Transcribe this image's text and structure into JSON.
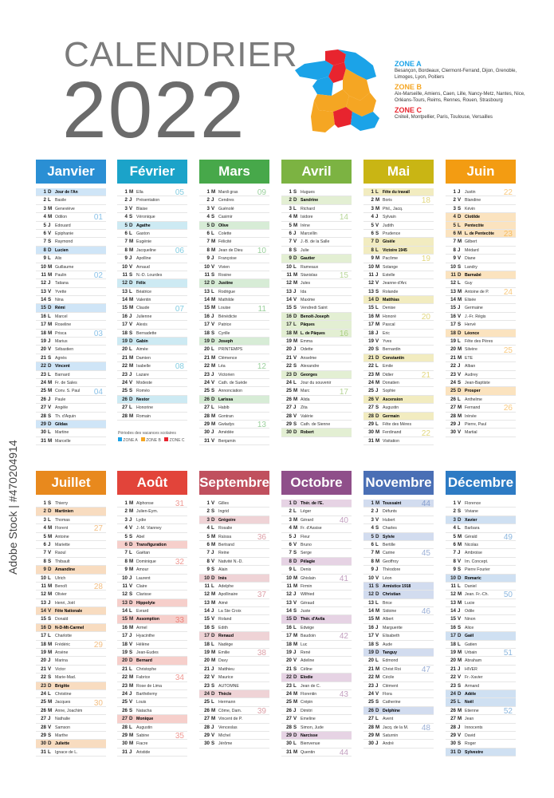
{
  "header": {
    "title": "CALENDRIER",
    "year": "2022"
  },
  "zones": [
    {
      "name": "ZONE A",
      "color": "#f5a623",
      "desc": "Besançon, Bordeaux, Clermont-Ferrand, Dijon, Grenoble, Limoges, Lyon, Poitiers"
    },
    {
      "name": "ZONE B",
      "color": "#f5a623",
      "desc": "Aix-Marseille, Amiens, Caen, Lille, Nancy-Metz, Nantes, Nice, Orléans-Tours, Reims, Rennes, Rouen, Strasbourg"
    },
    {
      "name": "ZONE C",
      "color": "#e8242e",
      "desc": "Créteil, Montpellier, Paris, Toulouse, Versailles"
    }
  ],
  "legend": {
    "title": "Périodes des vacances scolaires",
    "a": "ZONE A",
    "b": "ZONE B",
    "c": "ZONE C"
  },
  "watermark": {
    "side": "Adobe Stock | #470204914"
  },
  "months": [
    {
      "name": "Janvier",
      "color": "#2a8fd4",
      "tint": "#cfe5f7",
      "start": 6,
      "count": 31,
      "hol": {
        "1": "Jour de l'An"
      },
      "saints": [
        "Jour de l'An",
        "Basile",
        "Geneviève",
        "Odilon",
        "Edouard",
        "Epiphanie",
        "Raymond",
        "Lucien",
        "Alix",
        "Guillaume",
        "Paulin",
        "Tatiana",
        "Yvette",
        "Nina",
        "Rémi",
        "Marcel",
        "Roseline",
        "Prisca",
        "Marius",
        "Sébastien",
        "Agnès",
        "Vincent",
        "Barnard",
        "Fr. de Sales",
        "Conv. S. Paul",
        "Paule",
        "Angèle",
        "Th. d'Aquin",
        "Gildas",
        "Martine",
        "Marcelle"
      ],
      "weeks": [
        [
          "01",
          4
        ],
        [
          "02",
          11
        ],
        [
          "03",
          18
        ],
        [
          "04",
          25
        ]
      ]
    },
    {
      "name": "Février",
      "color": "#1ba3c9",
      "tint": "#cdeaf3",
      "start": 2,
      "count": 28,
      "hol": {},
      "saints": [
        "Ella",
        "Présentation",
        "Blaise",
        "Véronique",
        "Agathe",
        "Gaston",
        "Eugénie",
        "Jacqueline",
        "Apolline",
        "Arnaud",
        "N.-D. Lourdes",
        "Félix",
        "Béatrice",
        "Valentin",
        "Claude",
        "Julienne",
        "Alexis",
        "Bernadette",
        "Gabin",
        "Aimée",
        "Damien",
        "Isabelle",
        "Lazare",
        "Modeste",
        "Roméo",
        "Nestor",
        "Honorine",
        "Romain"
      ],
      "weeks": [
        [
          "05",
          1
        ],
        [
          "06",
          8
        ],
        [
          "07",
          15
        ],
        [
          "08",
          22
        ]
      ]
    },
    {
      "name": "Mars",
      "color": "#47a84a",
      "tint": "#d7ecd6",
      "start": 2,
      "count": 31,
      "hol": {},
      "saints": [
        "Mardi gras",
        "Cendres",
        "Guénolé",
        "Casimir",
        "Olive",
        "Colette",
        "Félicité",
        "Jean de Dieu",
        "Françoise",
        "Vivien",
        "Rosine",
        "Justine",
        "Rodrigue",
        "Mathilde",
        "Louise",
        "Bénédicte",
        "Patrice",
        "Cyrille",
        "Joseph",
        "PRINTEMPS",
        "Clémence",
        "Léa",
        "Victorien",
        "Cath. de Suède",
        "Annonciation",
        "Larissa",
        "Habib",
        "Gontran",
        "Gwladys",
        "Amédée",
        "Benjamin"
      ],
      "weeks": [
        [
          "09",
          1
        ],
        [
          "10",
          8
        ],
        [
          "11",
          15
        ],
        [
          "12",
          22
        ],
        [
          "13",
          29
        ]
      ]
    },
    {
      "name": "Avril",
      "color": "#7cb342",
      "tint": "#e3efd3",
      "start": 5,
      "count": 30,
      "hol": {
        "17": "Pâques",
        "18": "L. de Pâques"
      },
      "saints": [
        "Hugues",
        "Sandrine",
        "Richard",
        "Isidore",
        "Irène",
        "Marcellin",
        "J.-B. de la Salle",
        "Julie",
        "Gautier",
        "Rameaux",
        "Stanislas",
        "Jules",
        "Ida",
        "Maxime",
        "Vendredi Saint",
        "Benoît-Joseph",
        "Pâques",
        "L. de Pâques",
        "Emma",
        "Odette",
        "Anselme",
        "Alexandre",
        "Georges",
        "Jour du souvenir",
        "Marc",
        "Alida",
        "Zita",
        "Valérie",
        "Cath. de Sienne",
        "Robert"
      ],
      "weeks": [
        [
          "14",
          4
        ],
        [
          "15",
          11
        ],
        [
          "16",
          18
        ],
        [
          "17",
          25
        ]
      ]
    },
    {
      "name": "Mai",
      "color": "#c9b514",
      "tint": "#f2ecc0",
      "start": 0,
      "count": 31,
      "hol": {
        "1": "Fête du travail",
        "8": "Victoire 1945",
        "26": "Ascension"
      },
      "saints": [
        "Fête du travail",
        "Boris",
        "Phil., Jacq.",
        "Sylvain",
        "Judith",
        "Prudence",
        "Gisèle",
        "Victoire 1945",
        "Pacôme",
        "Solange",
        "Estelle",
        "Jeanne-d'Arc",
        "Rolande",
        "Matthias",
        "Denise",
        "Honoré",
        "Pascal",
        "Eric",
        "Yves",
        "Bernardin",
        "Constantin",
        "Emile",
        "Didier",
        "Donatien",
        "Sophie",
        "Ascension",
        "Augustin",
        "Germain",
        "Fête des Mères",
        "Ferdinand",
        "Visitation"
      ],
      "weeks": [
        [
          "18",
          2
        ],
        [
          "19",
          9
        ],
        [
          "20",
          16
        ],
        [
          "21",
          23
        ],
        [
          "22",
          30
        ]
      ]
    },
    {
      "name": "Juin",
      "color": "#f39c12",
      "tint": "#fbe3bf",
      "start": 3,
      "count": 30,
      "hol": {
        "5": "Pentecôte",
        "6": "L. de Pentecôte"
      },
      "saints": [
        "Justin",
        "Blandine",
        "Kévin",
        "Clotilde",
        "Pentecôte",
        "L. de Pentecôte",
        "Gilbert",
        "Médard",
        "Diane",
        "Landry",
        "Barnabé",
        "Guy",
        "Antoine de P.",
        "Elisée",
        "Germaine",
        "J.-Fr. Régis",
        "Hervé",
        "Léonce",
        "Fête des Pères",
        "Silvère",
        "ETE",
        "Alban",
        "Audrey",
        "Jean-Baptiste",
        "Prosper",
        "Anthelme",
        "Fernand",
        "Irénée",
        "Pierre, Paul",
        "Martial"
      ],
      "weeks": [
        [
          "22",
          1
        ],
        [
          "23",
          6
        ],
        [
          "24",
          13
        ],
        [
          "25",
          20
        ],
        [
          "26",
          27
        ]
      ]
    },
    {
      "name": "Juillet",
      "color": "#e8891d",
      "tint": "#f8dcc0",
      "start": 5,
      "count": 31,
      "hol": {
        "14": "Fête Nationale"
      },
      "saints": [
        "Thierry",
        "Martinien",
        "Thomas",
        "Florent",
        "Antoine",
        "Mariette",
        "Raoul",
        "Thibault",
        "Amandine",
        "Ulrich",
        "Benoît",
        "Olivier",
        "Henri, Joël",
        "Fête Nationale",
        "Donald",
        "N-D-Mt-Carmel",
        "Charlotte",
        "Frédéric",
        "Arsène",
        "Marina",
        "Victor",
        "Marie-Mad.",
        "Brigitte",
        "Christine",
        "Jacques",
        "Anne, Joachim",
        "Nathalie",
        "Samson",
        "Marthe",
        "Juliette",
        "Ignace de L."
      ],
      "weeks": [
        [
          "27",
          4
        ],
        [
          "28",
          11
        ],
        [
          "29",
          18
        ],
        [
          "30",
          25
        ]
      ]
    },
    {
      "name": "Août",
      "color": "#e2443a",
      "tint": "#f6cfcb",
      "start": 1,
      "count": 31,
      "hol": {
        "15": "Assomption"
      },
      "saints": [
        "Alphonse",
        "Julien-Eym.",
        "Lydie",
        "J.-M. Vianney",
        "Abel",
        "Transfiguration",
        "Gaétan",
        "Dominique",
        "Amour",
        "Laurent",
        "Claire",
        "Clarisse",
        "Hippolyte",
        "Evrard",
        "Assomption",
        "Armel",
        "Hyacinthe",
        "Hélène",
        "Jean-Eudes",
        "Bernard",
        "Christophe",
        "Fabrice",
        "Rose de Lima",
        "Barthélemy",
        "Louis",
        "Natacha",
        "Monique",
        "Augustin",
        "Sabine",
        "Fiacre",
        "Aristide"
      ],
      "weeks": [
        [
          "31",
          1
        ],
        [
          "32",
          8
        ],
        [
          "33",
          15
        ],
        [
          "34",
          22
        ],
        [
          "35",
          29
        ]
      ]
    },
    {
      "name": "Septembre",
      "color": "#c0505e",
      "tint": "#efd3d6",
      "start": 4,
      "count": 30,
      "hol": {},
      "saints": [
        "Gilles",
        "Ingrid",
        "Grégoire",
        "Rosalie",
        "Raïssa",
        "Bertrand",
        "Reine",
        "Nativité N.-D.",
        "Alain",
        "Inès",
        "Adelphe",
        "Apollinaire",
        "Aimé",
        "La Ste Croix",
        "Roland",
        "Edith",
        "Renaud",
        "Nadège",
        "Emilie",
        "Davy",
        "Matthieu",
        "Maurice",
        "AUTOMNE",
        "Thècle",
        "Hermann",
        "Côme, Dam.",
        "Vincent de P.",
        "Venceslas",
        "Michel",
        "Jérôme"
      ],
      "weeks": [
        [
          "36",
          5
        ],
        [
          "37",
          12
        ],
        [
          "38",
          19
        ],
        [
          "39",
          26
        ]
      ]
    },
    {
      "name": "Octobre",
      "color": "#8f4f8a",
      "tint": "#e6d3e4",
      "start": 6,
      "count": 31,
      "hol": {},
      "saints": [
        "Thér. de l'E.",
        "Léger",
        "Gérard",
        "Fr. d'Assise",
        "Fleur",
        "Bruno",
        "Serge",
        "Pélagie",
        "Denis",
        "Ghislain",
        "Firmin",
        "Wilfried",
        "Géraud",
        "Juste",
        "Thér. d'Avila",
        "Edwige",
        "Baudoin",
        "Luc",
        "René",
        "Adeline",
        "Céline",
        "Elodie",
        "Jean de C.",
        "Florentin",
        "Crépin",
        "Dimitri",
        "Emeline",
        "Simon, Jude",
        "Narcisse",
        "Bienvenue",
        "Quentin"
      ],
      "weeks": [
        [
          "40",
          3
        ],
        [
          "41",
          10
        ],
        [
          "42",
          17
        ],
        [
          "43",
          24
        ],
        [
          "44",
          31
        ]
      ]
    },
    {
      "name": "Novembre",
      "color": "#4a6fb5",
      "tint": "#d2dcef",
      "start": 2,
      "count": 30,
      "hol": {
        "1": "Toussaint",
        "11": "Armistice 1918"
      },
      "saints": [
        "Toussaint",
        "Défunts",
        "Hubert",
        "Charles",
        "Sylvie",
        "Bertille",
        "Carine",
        "Geoffroy",
        "Théodore",
        "Léon",
        "Armistice 1918",
        "Christian",
        "Brice",
        "Sidoine",
        "Albert",
        "Marguerite",
        "Elisabeth",
        "Aude",
        "Tanguy",
        "Edmond",
        "Christ Roi",
        "Cécile",
        "Clément",
        "Flora",
        "Catherine",
        "Delphine",
        "Avent",
        "Jacq. de la M.",
        "Saturnin",
        "André"
      ],
      "weeks": [
        [
          "44",
          1
        ],
        [
          "45",
          7
        ],
        [
          "46",
          14
        ],
        [
          "47",
          21
        ],
        [
          "48",
          28
        ]
      ]
    },
    {
      "name": "Décembre",
      "color": "#2d7bc4",
      "tint": "#cfe0f2",
      "start": 4,
      "count": 31,
      "hol": {
        "25": "Noël"
      },
      "saints": [
        "Florence",
        "Viviane",
        "Xavier",
        "Barbara",
        "Gérald",
        "Nicolas",
        "Ambroise",
        "Im. Concept.",
        "Pierre Fourier",
        "Romaric",
        "Daniel",
        "Jean. Fr.-Ch.",
        "Lucie",
        "Odile",
        "Ninon",
        "Alice",
        "Gaël",
        "Gatien",
        "Urbain",
        "Abraham",
        "HIVER",
        "Fr.-Xavier",
        "Armand",
        "Adèle",
        "Noël",
        "Etienne",
        "Jean",
        "Innocents",
        "David",
        "Roger",
        "Sylvestre"
      ],
      "weeks": [
        [
          "49",
          5
        ],
        [
          "50",
          12
        ],
        [
          "51",
          19
        ],
        [
          "52",
          26
        ]
      ]
    }
  ],
  "dayletters": [
    "L",
    "M",
    "M",
    "J",
    "V",
    "S",
    "D"
  ]
}
